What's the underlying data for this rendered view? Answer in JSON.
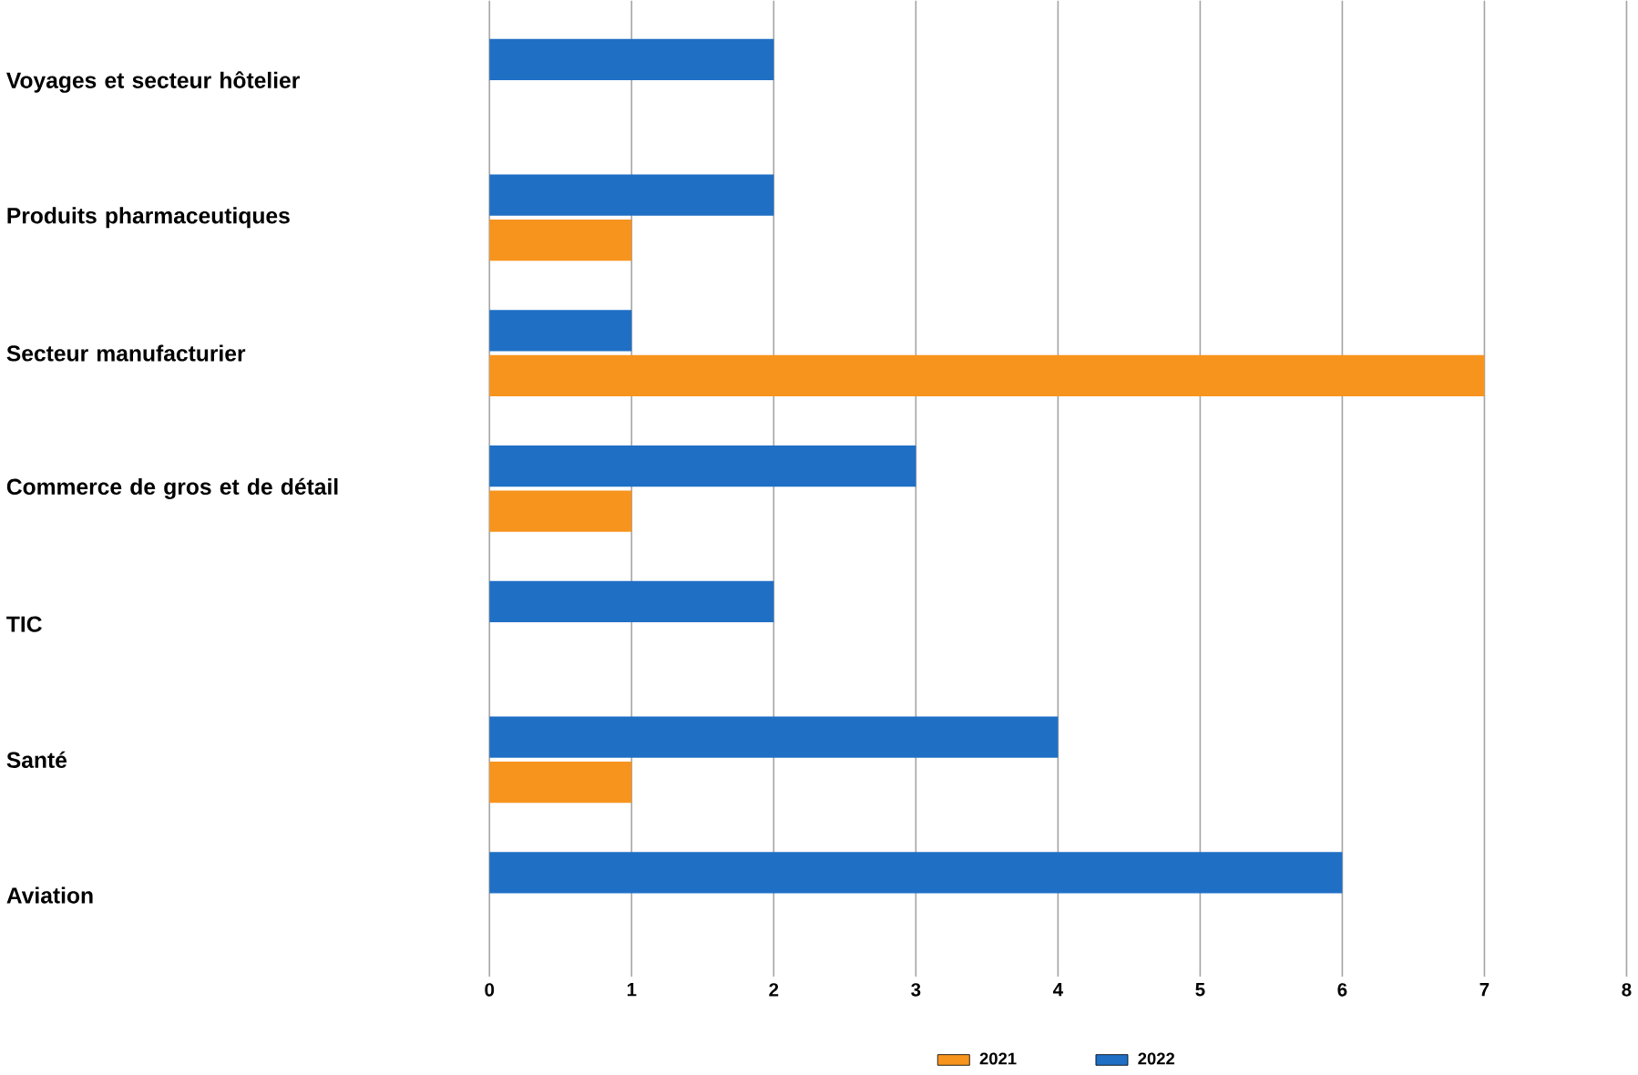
{
  "chart_data": {
    "type": "bar",
    "orientation": "horizontal",
    "categories": [
      "Voyages et secteur hôtelier",
      "Produits pharmaceutiques",
      "Secteur manufacturier",
      "Commerce de gros et de détail",
      "TIC",
      "Santé",
      "Aviation"
    ],
    "series": [
      {
        "name": "2021",
        "color": "#f7941d",
        "values": [
          null,
          1,
          7,
          1,
          null,
          1,
          null
        ]
      },
      {
        "name": "2022",
        "color": "#1f6fc5",
        "values": [
          2,
          2,
          1,
          3,
          2,
          4,
          6
        ]
      }
    ],
    "xlim": [
      0,
      8
    ],
    "xticks": [
      0,
      1,
      2,
      3,
      4,
      5,
      6,
      7,
      8
    ],
    "grid": "x",
    "legend": "bottom"
  }
}
